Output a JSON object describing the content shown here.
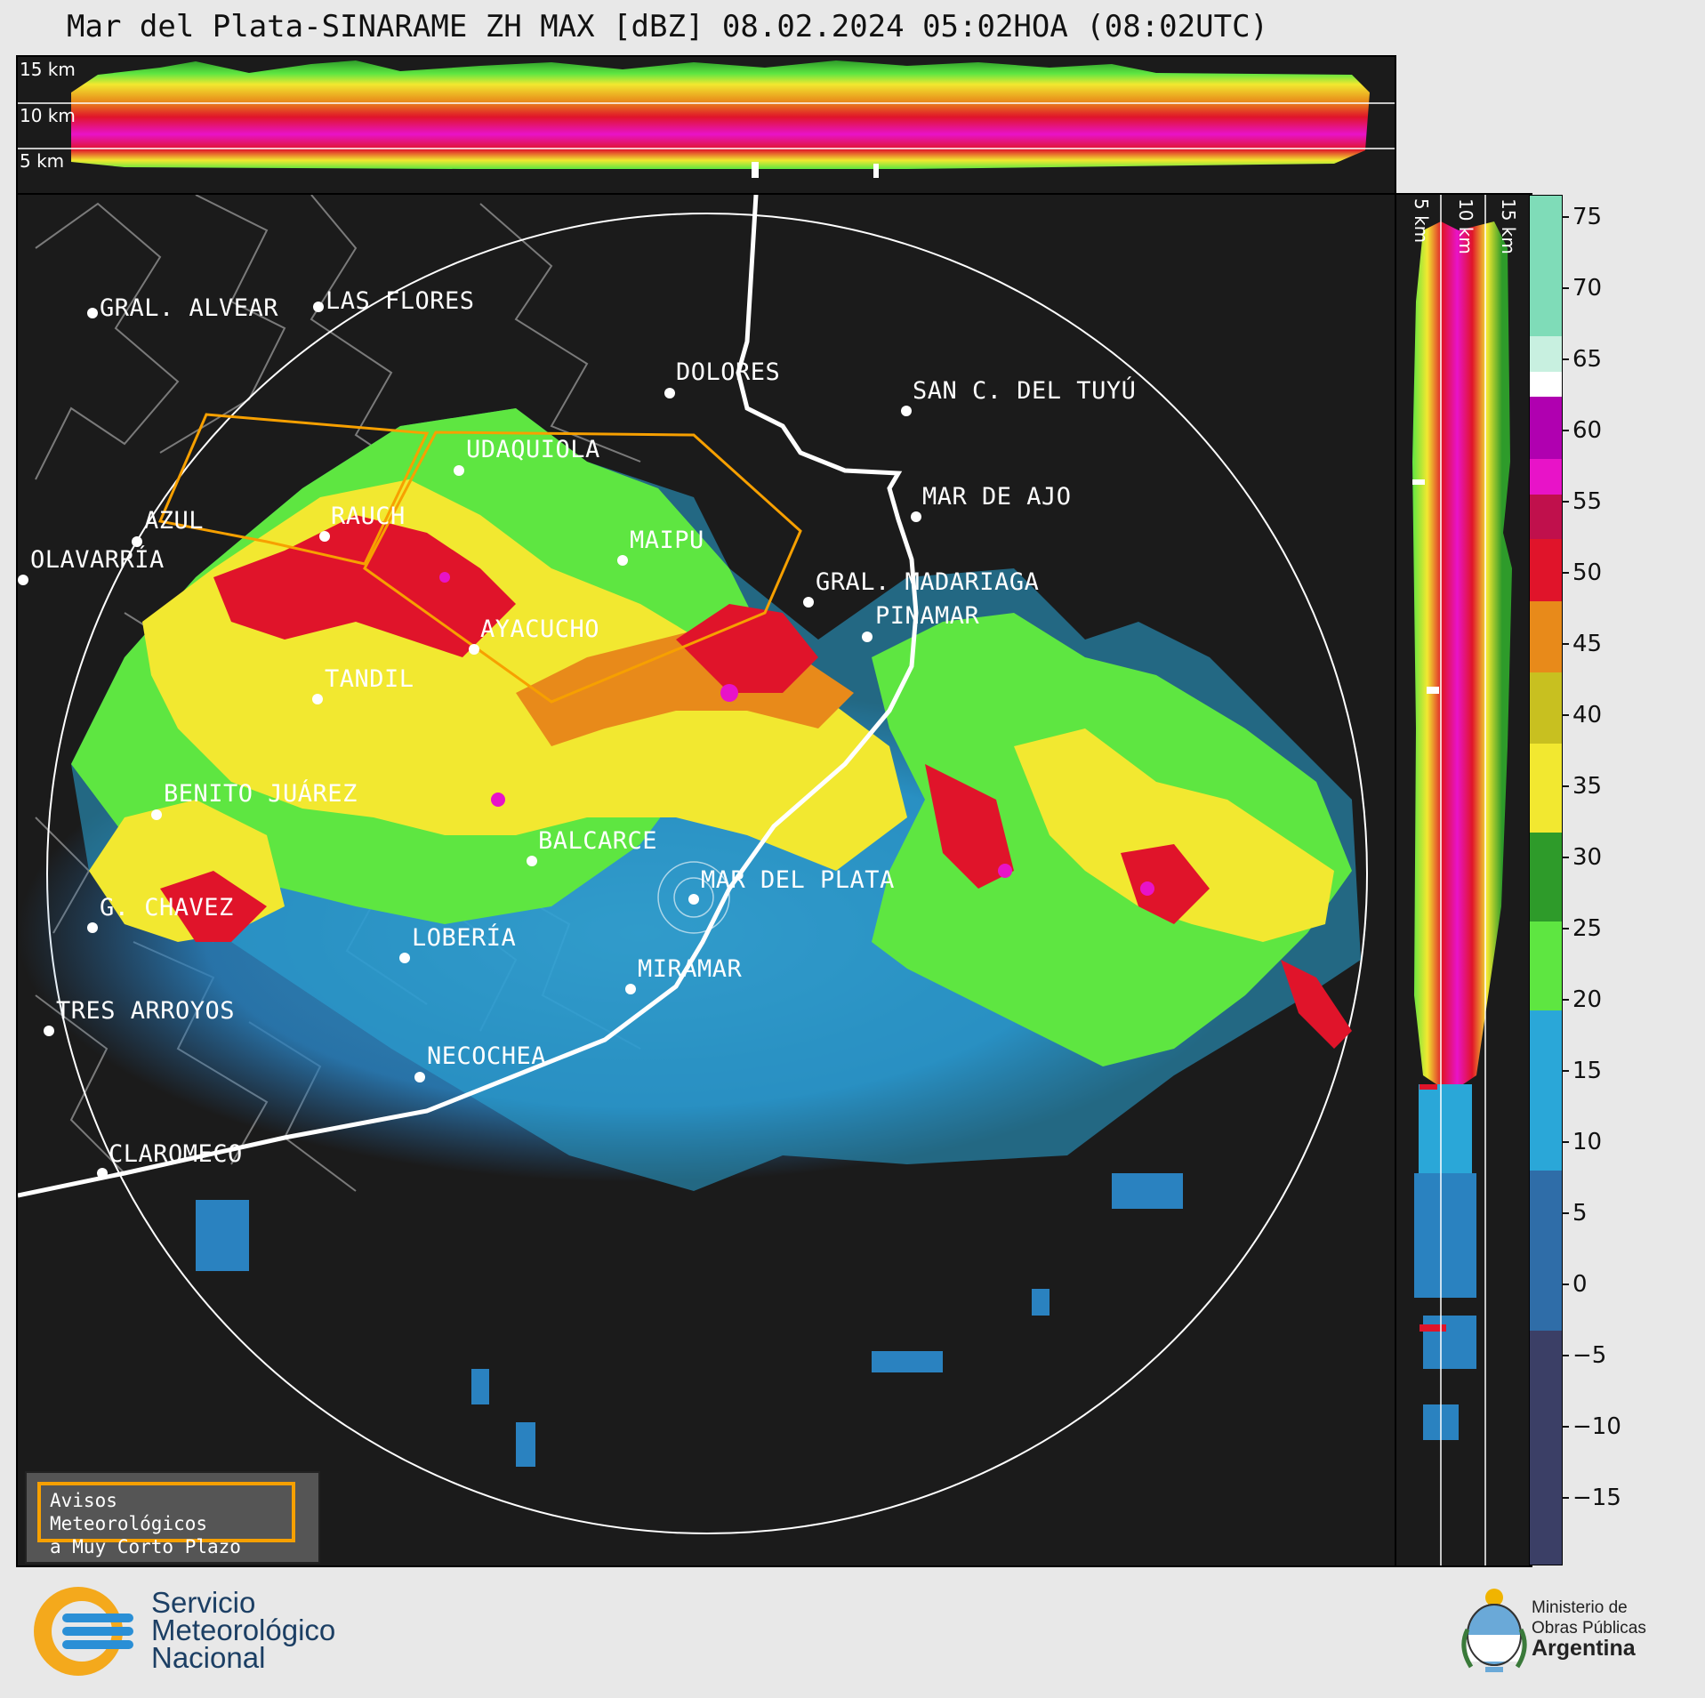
{
  "title": "Mar del Plata-SINARAME ZH MAX [dBZ] 08.02.2024 05:02HOA (08:02UTC)",
  "top_panel": {
    "height_labels": [
      "15 km",
      "10 km",
      "5 km"
    ]
  },
  "side_panel": {
    "height_labels": [
      "5 km",
      "10 km",
      "15 km"
    ]
  },
  "colorbar": {
    "unit": "dBZ",
    "ticks": [
      "75",
      "70",
      "65",
      "60",
      "55",
      "50",
      "45",
      "40",
      "35",
      "30",
      "25",
      "20",
      "15",
      "10",
      "5",
      "0",
      "−5",
      "−10",
      "−15"
    ],
    "colors": {
      "very_low": "#3b3f66",
      "low_blue": "#2f6da8",
      "blue": "#2aa7d8",
      "green_light": "#5ee641",
      "green": "#2e9b2a",
      "green_dark": "#247024",
      "yellow": "#f2e830",
      "orange": "#e88a1a",
      "red": "#e0142a",
      "dark_red": "#a00010",
      "magenta": "#e813c8",
      "white": "#ffffff",
      "mint": "#7fdcb8"
    }
  },
  "map": {
    "cities": [
      {
        "name": "GRAL. ALVEAR"
      },
      {
        "name": "LAS FLORES"
      },
      {
        "name": "DOLORES"
      },
      {
        "name": "SAN C. DEL TUYÚ"
      },
      {
        "name": "UDAQUIOLA"
      },
      {
        "name": "MAR DE AJO"
      },
      {
        "name": "AZUL"
      },
      {
        "name": "RAUCH"
      },
      {
        "name": "OLAVARRÍA"
      },
      {
        "name": "MAIPU"
      },
      {
        "name": "GRAL. MADARIAGA"
      },
      {
        "name": "PINAMAR"
      },
      {
        "name": "AYACUCHO"
      },
      {
        "name": "TANDIL"
      },
      {
        "name": "BENITO JUÁREZ"
      },
      {
        "name": "BALCARCE"
      },
      {
        "name": "MAR DEL PLATA"
      },
      {
        "name": "G. CHAVEZ"
      },
      {
        "name": "LOBERÍA"
      },
      {
        "name": "MIRAMAR"
      },
      {
        "name": "TRES ARROYOS"
      },
      {
        "name": "NECOCHEA"
      },
      {
        "name": "CLAROMECO"
      }
    ],
    "warning_polygon_color": "#f7a000"
  },
  "warning_box": {
    "line1": "Avisos Meteorológicos",
    "line2": "a Muy Corto Plazo"
  },
  "footer": {
    "smn": {
      "line1": "Servicio",
      "line2": "Meteorológico",
      "line3": "Nacional"
    },
    "ministry": {
      "line1": "Ministerio de",
      "line2": "Obras Públicas",
      "line3": "Argentina"
    }
  }
}
